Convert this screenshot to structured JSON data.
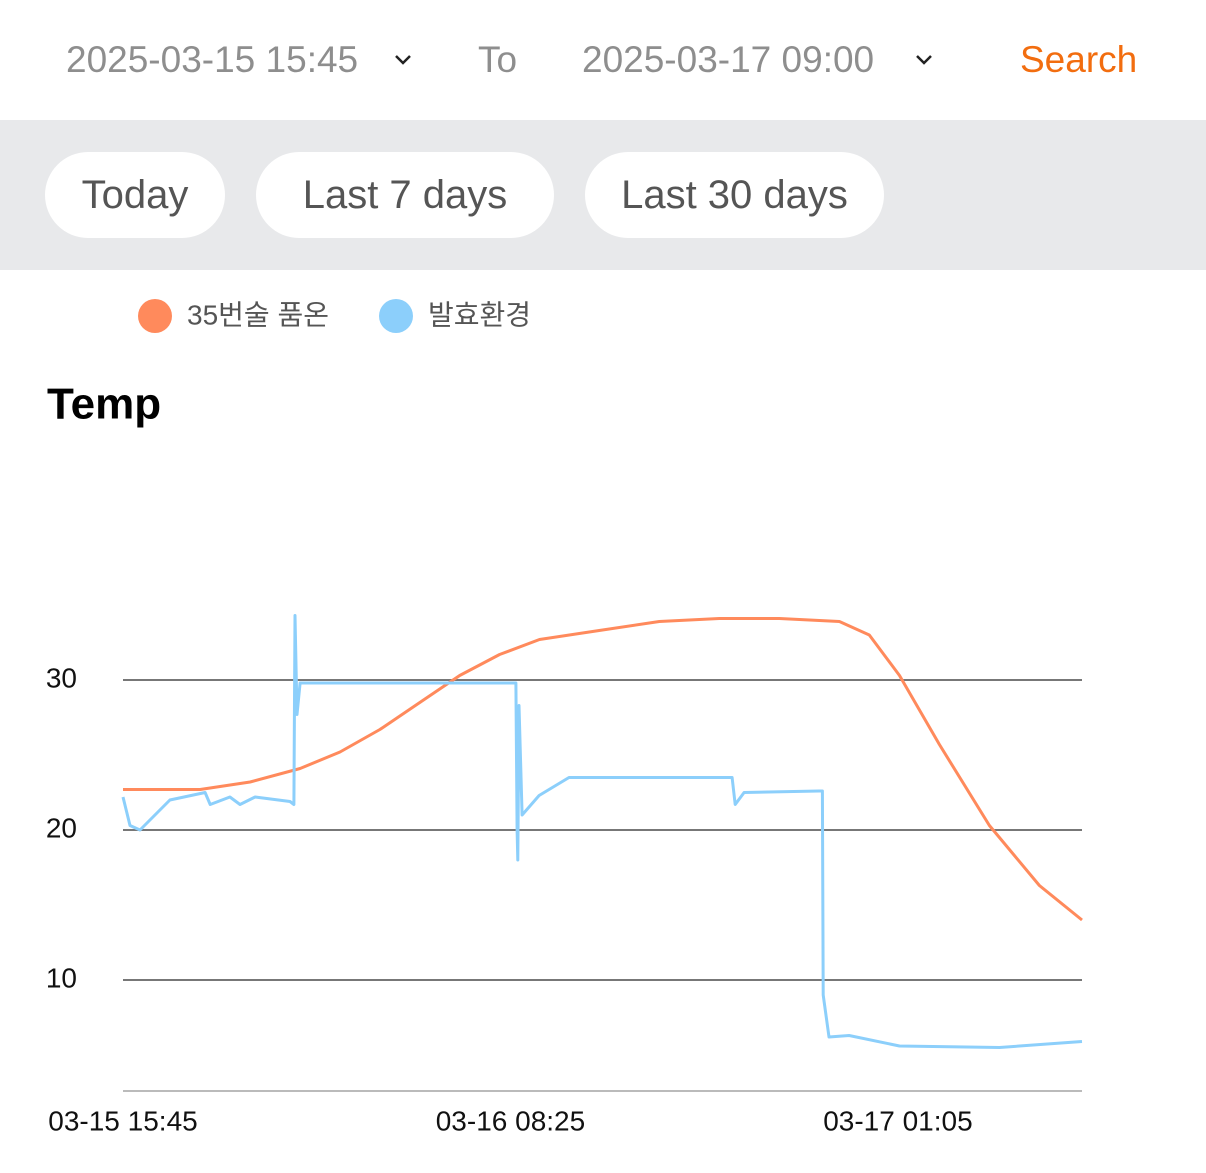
{
  "header": {
    "start_date": "2025-03-15 15:45",
    "to": "To",
    "end_date": "2025-03-17 09:00",
    "search": "Search"
  },
  "quick_ranges": [
    "Today",
    "Last 7 days",
    "Last 30 days"
  ],
  "chart_data": {
    "type": "line",
    "title": "Temp",
    "xlim": [
      0,
      2475
    ],
    "xticks": [
      {
        "value": 0,
        "label": "03-15 15:45"
      },
      {
        "value": 1000,
        "label": "03-16 08:25"
      },
      {
        "value": 2000,
        "label": "03-17 01:05"
      }
    ],
    "ylim": [
      2.6,
      40
    ],
    "yticks": [
      10,
      20,
      30
    ],
    "grid": true,
    "series": [
      {
        "name": "35번술 품온",
        "color": "#ff8a5c",
        "x": [
          0,
          199,
          328,
          457,
          560,
          663,
          766,
          869,
          972,
          1075,
          1229,
          1384,
          1539,
          1694,
          1849,
          1926,
          2004,
          2107,
          2236,
          2365,
          2475
        ],
        "values": [
          22.7,
          22.7,
          23.2,
          24.1,
          25.2,
          26.7,
          28.5,
          30.3,
          31.7,
          32.7,
          33.3,
          33.9,
          34.1,
          34.1,
          33.9,
          33.0,
          30.3,
          25.7,
          20.3,
          16.3,
          14.0
        ]
      },
      {
        "name": "발효환경",
        "color": "#8ccffb",
        "x": [
          0,
          18,
          44,
          121,
          212,
          225,
          276,
          302,
          341,
          431,
          441,
          444,
          449,
          457,
          715,
          1014,
          1017,
          1019,
          1022,
          1030,
          1074,
          1151,
          1572,
          1580,
          1603,
          1797,
          1805,
          1807,
          1822,
          1874,
          2004,
          2262,
          2475
        ],
        "values": [
          22.2,
          20.3,
          20.0,
          22.0,
          22.5,
          21.7,
          22.2,
          21.7,
          22.2,
          21.9,
          21.7,
          34.3,
          27.7,
          29.8,
          29.8,
          29.8,
          20.0,
          18.0,
          28.3,
          21.0,
          22.3,
          23.5,
          23.5,
          21.7,
          22.5,
          22.6,
          22.6,
          9.0,
          6.2,
          6.3,
          5.6,
          5.5,
          5.9
        ]
      }
    ]
  }
}
